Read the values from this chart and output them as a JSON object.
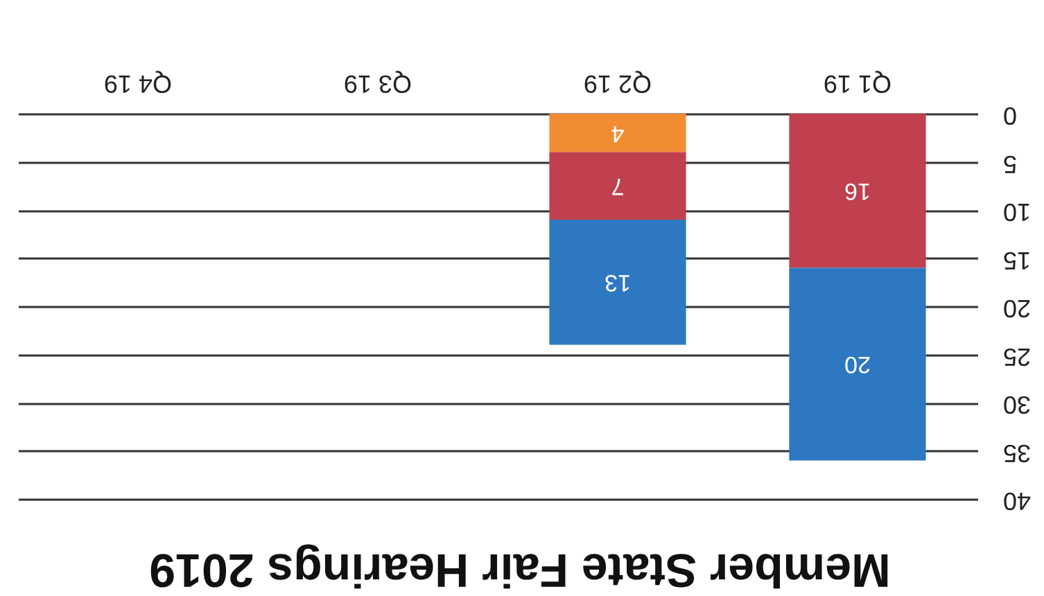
{
  "chart_data": {
    "type": "bar",
    "title": "Member State Fair Hearings 2019",
    "categories": [
      "Q4 19",
      "Q3 19",
      "Q2 19",
      "Q1 19"
    ],
    "stacked": true,
    "series": [
      {
        "color": "#f28c33",
        "values": [
          null,
          null,
          4,
          null
        ]
      },
      {
        "color": "#c0404f",
        "values": [
          null,
          null,
          7,
          16
        ]
      },
      {
        "color": "#2e78c2",
        "values": [
          null,
          null,
          13,
          20
        ]
      }
    ],
    "ylim": [
      40,
      0
    ],
    "yticks": [
      0,
      5,
      10,
      15,
      20,
      25,
      30,
      35,
      40
    ],
    "grid": "y",
    "data_labels": true
  }
}
